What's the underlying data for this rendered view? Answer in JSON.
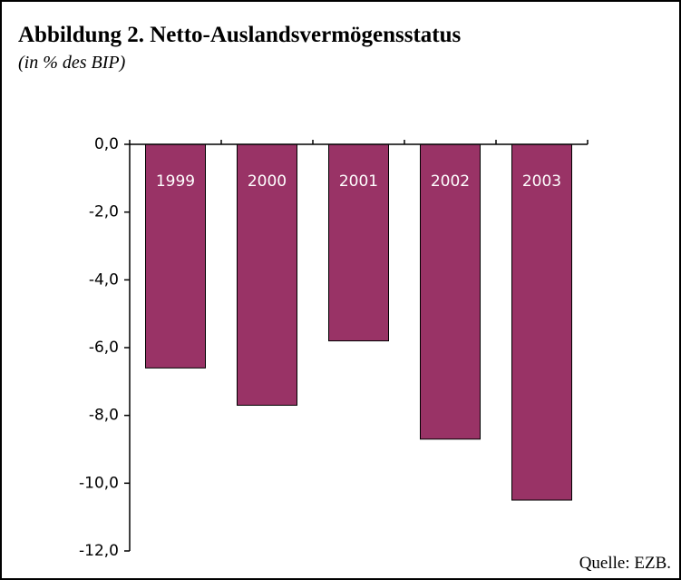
{
  "chart_data": {
    "type": "bar",
    "title": "Abbildung 2. Netto-Auslandsvermögensstatus",
    "subtitle": "(in % des BIP)",
    "source": "Quelle: EZB.",
    "categories": [
      "1999",
      "2000",
      "2001",
      "2002",
      "2003"
    ],
    "values": [
      -6.6,
      -7.7,
      -5.8,
      -8.7,
      -10.5
    ],
    "color": "#993366",
    "ylim": [
      -12,
      0
    ],
    "yticks": [
      {
        "value": 0,
        "label": "0,0"
      },
      {
        "value": -2,
        "label": "-2,0"
      },
      {
        "value": -4,
        "label": "-4,0"
      },
      {
        "value": -6,
        "label": "-6,0"
      },
      {
        "value": -8,
        "label": "-8,0"
      },
      {
        "value": -10,
        "label": "-10,0"
      },
      {
        "value": -12,
        "label": "-12,0"
      }
    ]
  }
}
